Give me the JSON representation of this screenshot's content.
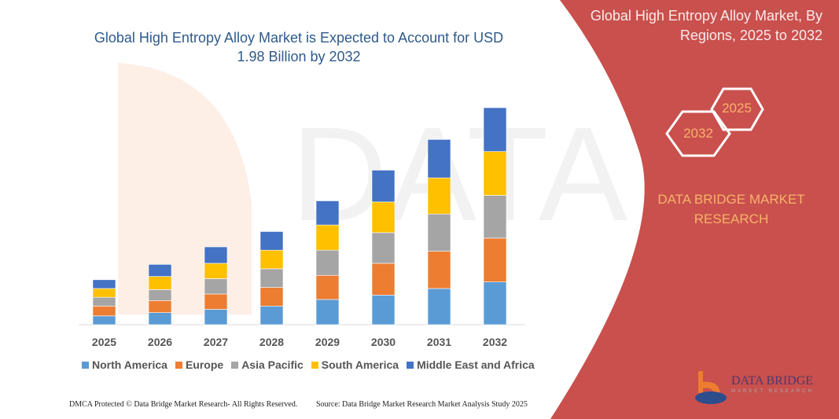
{
  "title": "Global High Entropy Alloy Market is Expected to Account for USD 1.98 Billion by 2032",
  "side_panel": {
    "title": "Global High Entropy Alloy Market, By Regions, 2025 to 2032",
    "hex_labels": [
      "2025",
      "2032"
    ],
    "brand": "DATA BRIDGE MARKET RESEARCH",
    "logo_text": "DATA BRIDGE",
    "logo_subtext": "MARKET RESEARCH",
    "color": "#c9504d"
  },
  "footer": {
    "left": "DMCA Protected © Data Bridge Market Research- All Rights Reserved.",
    "right": "Source: Data Bridge Market Research Market Analysis Study 2025"
  },
  "chart_data": {
    "type": "bar",
    "stacked": true,
    "title": "Global High Entropy Alloy Market is Expected to Account for USD 1.98 Billion by 2032",
    "xlabel": "",
    "ylabel": "",
    "legend": "bottom",
    "grid": false,
    "categories": [
      "2025",
      "2026",
      "2027",
      "2028",
      "2029",
      "2030",
      "2031",
      "2032"
    ],
    "series": [
      {
        "name": "North America",
        "color": "#5b9bd5",
        "values": [
          0.08,
          0.11,
          0.14,
          0.17,
          0.23,
          0.27,
          0.33,
          0.39
        ]
      },
      {
        "name": "Europe",
        "color": "#ed7d31",
        "values": [
          0.09,
          0.11,
          0.14,
          0.17,
          0.22,
          0.29,
          0.34,
          0.4
        ]
      },
      {
        "name": "Asia Pacific",
        "color": "#a5a5a5",
        "values": [
          0.08,
          0.1,
          0.14,
          0.17,
          0.23,
          0.28,
          0.34,
          0.39
        ]
      },
      {
        "name": "South America",
        "color": "#ffc000",
        "values": [
          0.08,
          0.12,
          0.14,
          0.17,
          0.23,
          0.28,
          0.33,
          0.4
        ]
      },
      {
        "name": "Middle East and Africa",
        "color": "#4472c4",
        "values": [
          0.08,
          0.11,
          0.15,
          0.17,
          0.22,
          0.29,
          0.35,
          0.4
        ]
      }
    ]
  }
}
